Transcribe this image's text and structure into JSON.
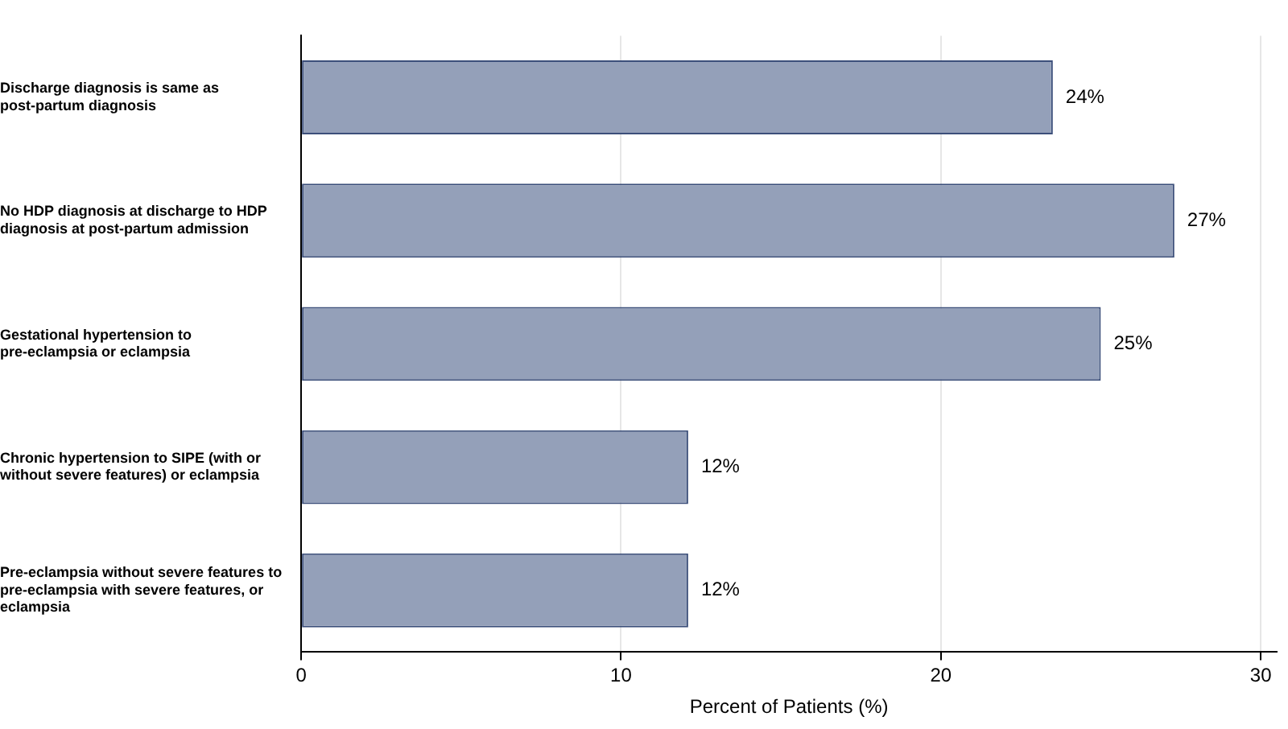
{
  "chart_data": {
    "type": "bar",
    "orientation": "horizontal",
    "xlabel": "Percent of Patients (%)",
    "categories": [
      "Discharge diagnosis is same as post-partum diagnosis",
      "No HDP diagnosis at discharge to HDP diagnosis at post-partum admission",
      "Gestational hypertension to pre-eclampsia or eclampsia",
      "Chronic hypertension to SIPE (with or without severe features) or eclampsia",
      "Pre-eclampsia without severe features to pre-eclampsia with severe features, or eclampsia"
    ],
    "series": [
      {
        "color": "#94a0b9",
        "values": [
          23.5,
          27.3,
          25.0,
          12.1,
          12.1
        ]
      }
    ],
    "value_labels": [
      "24%",
      "27%",
      "25%",
      "12%",
      "12%"
    ],
    "xlim": [
      0,
      30.5
    ],
    "xticks": [
      0,
      10,
      20,
      30
    ],
    "grid": "x",
    "legend": false
  }
}
